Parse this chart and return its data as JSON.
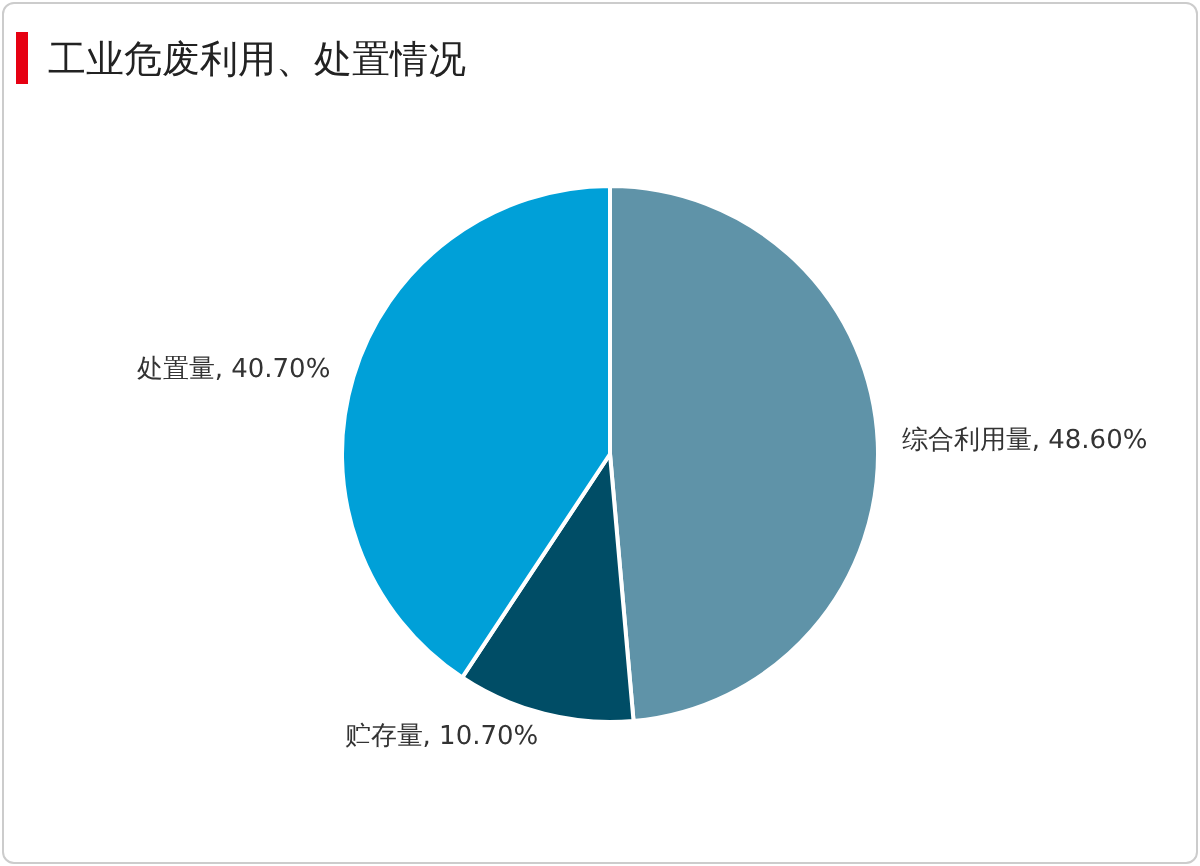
{
  "chart_data": {
    "type": "pie",
    "title": "工业危废利用、处置情况",
    "categories": [
      "综合利用量",
      "贮存量",
      "处置量"
    ],
    "values": [
      48.6,
      10.7,
      40.7
    ],
    "value_labels": [
      "48.60%",
      "10.70%",
      "40.70%"
    ],
    "colors": [
      "#5f93a8",
      "#004d66",
      "#00a0d8"
    ]
  }
}
